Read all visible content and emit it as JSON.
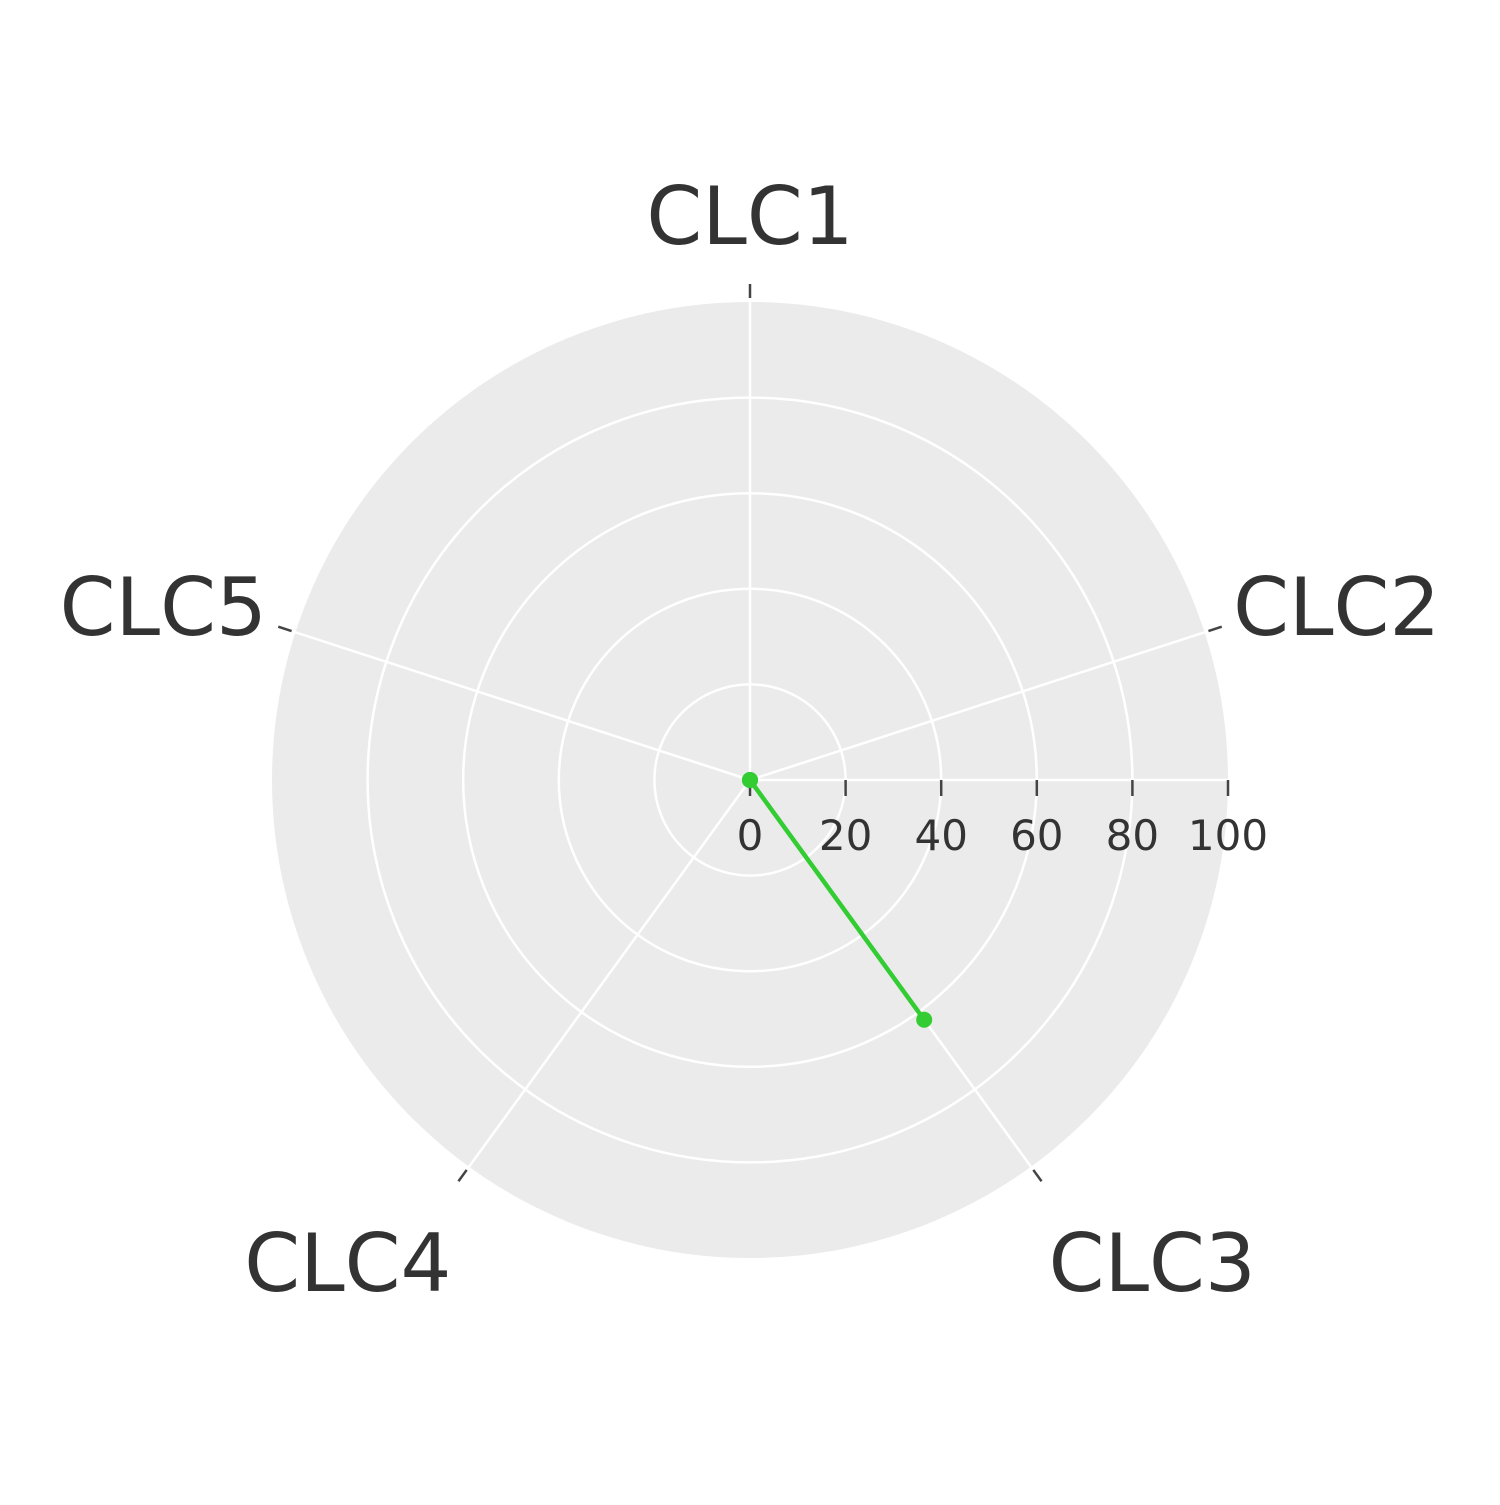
{
  "chart_data": {
    "type": "radar",
    "categories": [
      "CLC1",
      "CLC2",
      "CLC3",
      "CLC4",
      "CLC5"
    ],
    "series": [
      {
        "values": [
          0,
          0,
          62,
          0,
          0
        ],
        "color": "#33cc33"
      }
    ],
    "radial_axis": {
      "range": [
        0,
        100
      ],
      "ticks": [
        0,
        20,
        40,
        60,
        80,
        100
      ],
      "tick_labels": [
        "0",
        "20",
        "40",
        "60",
        "80",
        "100"
      ],
      "grid": true
    },
    "background_color": "#ebebeb",
    "grid_color": "#ffffff",
    "legend": "none"
  }
}
